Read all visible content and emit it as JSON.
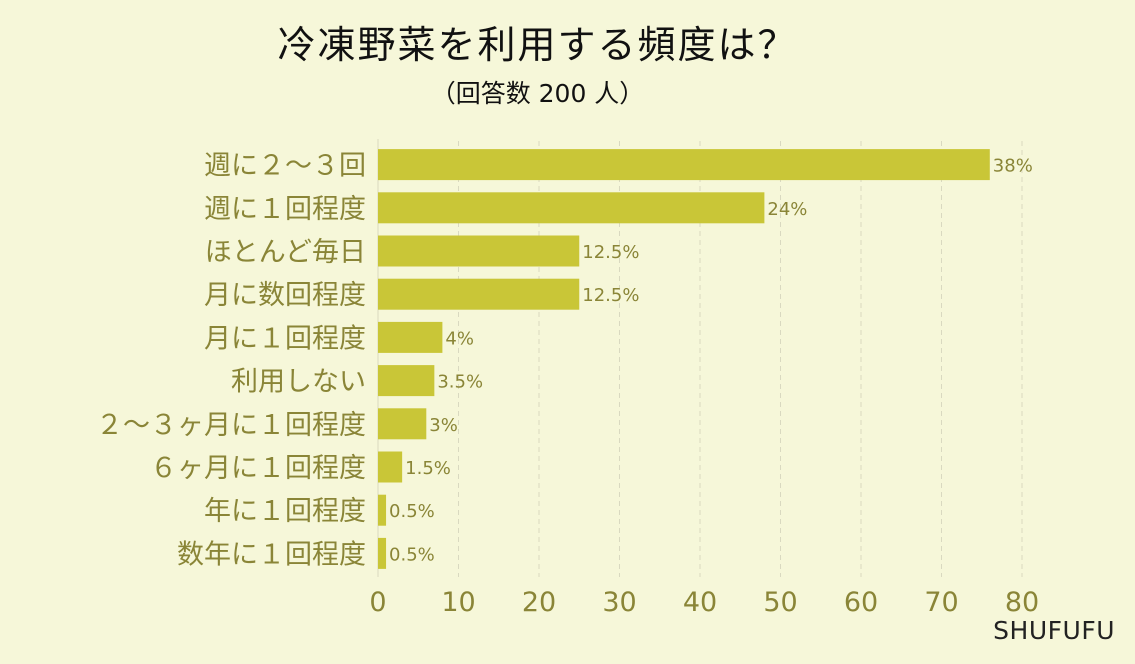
{
  "chart_data": {
    "type": "bar",
    "orientation": "horizontal",
    "title": "冷凍野菜を利用する頻度は？",
    "subtitle": "（回答数 200 人）",
    "categories": [
      "週に２～３回",
      "週に１回程度",
      "ほとんど毎日",
      "月に数回程度",
      "月に１回程度",
      "利用しない",
      "２～３ヶ月に１回程度",
      "６ヶ月に１回程度",
      "年に１回程度",
      "数年に１回程度"
    ],
    "values": [
      76,
      48,
      25,
      25,
      8,
      7,
      6,
      3,
      1,
      1
    ],
    "data_labels": [
      "38%",
      "24%",
      "12.5%",
      "12.5%",
      "4%",
      "3.5%",
      "3%",
      "1.5%",
      "0.5%",
      "0.5%"
    ],
    "xlim": [
      0,
      80
    ],
    "xticks": [
      0,
      10,
      20,
      30,
      40,
      50,
      60,
      70,
      80
    ],
    "grid": "vertical dashed",
    "bar_color": "#c9c637",
    "label_color": "#8a8537"
  },
  "brand": "SHUFUFU"
}
